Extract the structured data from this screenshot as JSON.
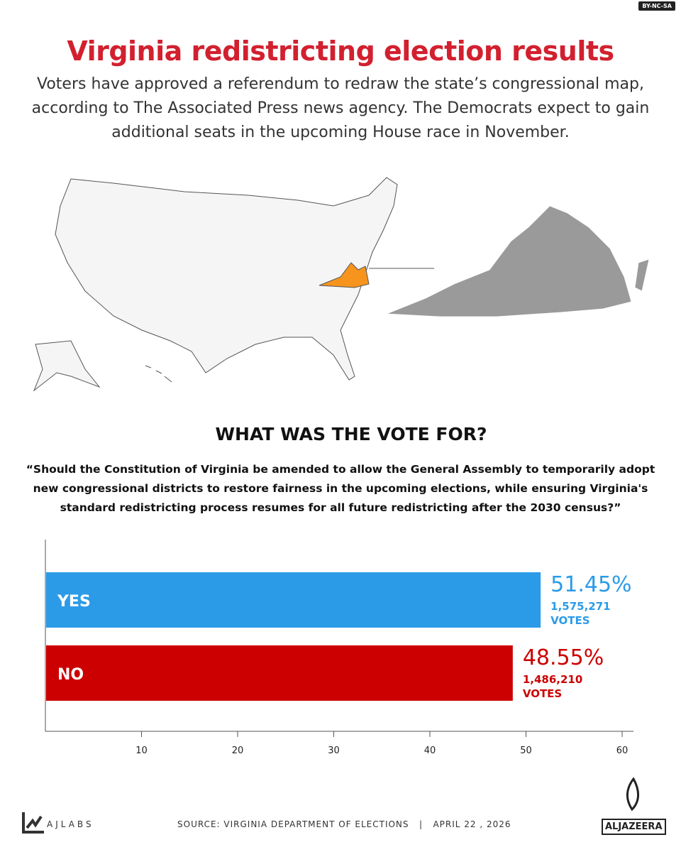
{
  "license": "BY-NC-SA",
  "title": "Virginia redistricting election results",
  "subtitle": "Voters have approved a referendum to redraw the state’s congressional map, according to The Associated Press news agency. The Democrats expect to gain additional seats in the upcoming House race in November.",
  "map": {
    "highlight_state": "Virginia",
    "highlight_color": "#f7941d",
    "base_color": "#f5f5f5",
    "detail_color": "#9a9a9a"
  },
  "question": {
    "heading": "WHAT WAS THE VOTE FOR?",
    "text": "“Should the Constitution of Virginia be amended to allow the General Assembly to temporarily adopt new congressional districts to restore fairness in the upcoming elections, while ensuring Virginia's standard redistricting process resumes for all future redistricting after the 2030 census?”"
  },
  "chart_data": {
    "type": "bar",
    "orientation": "horizontal",
    "categories": [
      "YES",
      "NO"
    ],
    "values": [
      51.45,
      48.55
    ],
    "value_labels": [
      "51.45%",
      "48.55%"
    ],
    "votes": [
      "1,575,271",
      "1,486,210"
    ],
    "votes_suffix": "VOTES",
    "colors": [
      "#2b9be8",
      "#cc0000"
    ],
    "xlim": [
      0,
      60
    ],
    "ticks": [
      10,
      20,
      30,
      40,
      50,
      60
    ],
    "grid": false
  },
  "footer": {
    "brand": "AJLABS",
    "source": "SOURCE: VIRGINIA DEPARTMENT OF ELECTIONS   |   APRIL 22 , 2026",
    "logo": "ALJAZEERA"
  }
}
